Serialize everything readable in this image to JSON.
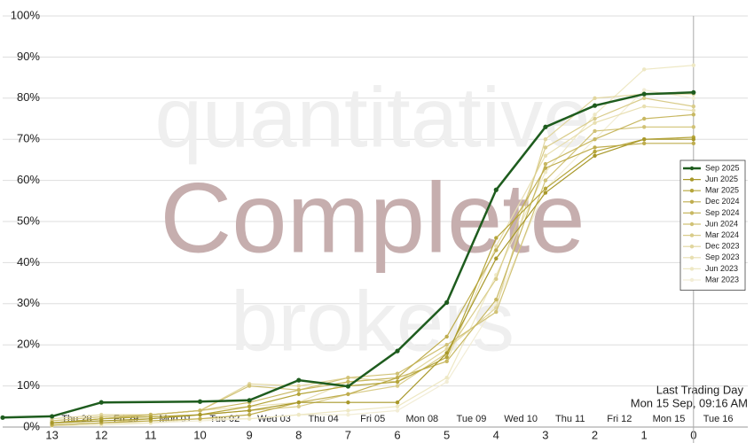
{
  "chart_data": {
    "type": "line",
    "watermark": [
      "quantitative",
      "Complete",
      "brokers"
    ],
    "annotations": [
      "Last Trading Day",
      "Mon 15 Sep, 09:16 AM"
    ],
    "xlim": [
      14,
      -1.1
    ],
    "xticks": [
      13,
      12,
      11,
      10,
      9,
      8,
      7,
      6,
      5,
      4,
      3,
      2,
      1,
      0
    ],
    "date_ticks": [
      {
        "value": 12.5,
        "label": "Thu 28"
      },
      {
        "value": 11.5,
        "label": "Fri 29"
      },
      {
        "value": 10.5,
        "label": "Mon 01"
      },
      {
        "value": 9.5,
        "label": "Tue 02"
      },
      {
        "value": 8.5,
        "label": "Wed 03"
      },
      {
        "value": 7.5,
        "label": "Thu 04"
      },
      {
        "value": 6.5,
        "label": "Fri 05"
      },
      {
        "value": 5.5,
        "label": "Mon 08"
      },
      {
        "value": 4.5,
        "label": "Tue 09"
      },
      {
        "value": 3.5,
        "label": "Wed 10"
      },
      {
        "value": 2.5,
        "label": "Thu 11"
      },
      {
        "value": 1.5,
        "label": "Fri 12"
      },
      {
        "value": 0.5,
        "label": "Mon 15"
      },
      {
        "value": -0.5,
        "label": "Tue 16"
      }
    ],
    "ylim": [
      0,
      100
    ],
    "yticks": [
      {
        "value": 0,
        "label": "0%"
      },
      {
        "value": 10,
        "label": "10%"
      },
      {
        "value": 20,
        "label": "20%"
      },
      {
        "value": 30,
        "label": "30%"
      },
      {
        "value": 40,
        "label": "40%"
      },
      {
        "value": 50,
        "label": "50%"
      },
      {
        "value": 60,
        "label": "60%"
      },
      {
        "value": 70,
        "label": "70%"
      },
      {
        "value": 80,
        "label": "80%"
      },
      {
        "value": 90,
        "label": "90%"
      },
      {
        "value": 100,
        "label": "100%"
      }
    ],
    "grid": true,
    "legend": "right",
    "marker_line_x": 0,
    "series": [
      {
        "name": "Sep 2025",
        "color": "#1e5c1e",
        "x": [
          14,
          13,
          12,
          10,
          9,
          8,
          7,
          6,
          5,
          4,
          3,
          2,
          1,
          0
        ],
        "values": [
          2.3,
          2.6,
          6.0,
          6.2,
          6.5,
          11.4,
          9.9,
          18.5,
          30.3,
          57.7,
          73.0,
          78.2,
          81.0,
          81.4
        ]
      },
      {
        "name": "Jun 2025",
        "color": "#a8982a",
        "x": [
          13,
          12,
          11,
          10,
          9,
          8,
          7,
          6,
          5,
          4,
          3,
          2,
          1,
          0
        ],
        "values": [
          1,
          1.5,
          2,
          3,
          4,
          6,
          6,
          6,
          18,
          41,
          57,
          66,
          70,
          70
        ]
      },
      {
        "name": "Mar 2025",
        "color": "#b5a53a",
        "x": [
          13,
          12,
          11,
          10,
          9,
          8,
          7,
          6,
          5,
          4,
          3,
          2,
          1,
          0
        ],
        "values": [
          1,
          2,
          2.5,
          3,
          5,
          8,
          10,
          11,
          17,
          46,
          58,
          67,
          70,
          70.5
        ]
      },
      {
        "name": "Dec 2024",
        "color": "#bfad4e",
        "x": [
          13,
          12,
          11,
          10,
          9,
          8,
          7,
          6,
          5,
          4,
          3,
          2,
          1,
          0
        ],
        "values": [
          0.5,
          1,
          1.5,
          2,
          3,
          6,
          8,
          12,
          22,
          43,
          63,
          68,
          69,
          69
        ]
      },
      {
        "name": "Sep 2024",
        "color": "#c8b862",
        "x": [
          13,
          12,
          11,
          10,
          9,
          8,
          7,
          6,
          5,
          4,
          3,
          2,
          1,
          0
        ],
        "values": [
          1,
          2,
          3,
          4,
          6,
          9,
          11,
          12,
          16,
          31,
          64,
          70,
          75,
          76
        ]
      },
      {
        "name": "Jun 2024",
        "color": "#d1c276",
        "x": [
          13,
          12,
          11,
          10,
          9,
          8,
          7,
          6,
          5,
          4,
          3,
          2,
          1,
          0
        ],
        "values": [
          1.5,
          2.5,
          3,
          4,
          10,
          9,
          12,
          13,
          20,
          28,
          60,
          72,
          73,
          73
        ]
      },
      {
        "name": "Mar 2024",
        "color": "#d9cc8a",
        "x": [
          13,
          12,
          11,
          10,
          9,
          8,
          7,
          6,
          5,
          4,
          3,
          2,
          1,
          0
        ],
        "values": [
          0.5,
          1,
          2,
          3,
          4,
          5,
          8,
          10,
          18,
          36,
          68,
          75,
          80,
          78
        ]
      },
      {
        "name": "Dec 2023",
        "color": "#e1d69e",
        "x": [
          13,
          12,
          11,
          10,
          9,
          8,
          7,
          6,
          5,
          4,
          3,
          2,
          1,
          0
        ],
        "values": [
          2,
          3,
          3,
          4,
          10.5,
          10,
          12,
          11,
          19,
          29,
          70,
          80,
          81,
          81
        ]
      },
      {
        "name": "Sep 2023",
        "color": "#e8dfb1",
        "x": [
          13,
          12,
          11,
          10,
          9,
          8,
          7,
          6,
          5,
          4,
          3,
          2,
          1,
          0
        ],
        "values": [
          1,
          2,
          3,
          4,
          5,
          6,
          11,
          12,
          16,
          44,
          66,
          74,
          78,
          77
        ]
      },
      {
        "name": "Jun 2023",
        "color": "#eee8c4",
        "x": [
          13,
          12,
          11,
          10,
          9,
          8,
          7,
          6,
          5,
          4,
          3,
          2,
          1,
          0
        ],
        "values": [
          0.3,
          0.5,
          1,
          2,
          2,
          3,
          4,
          5,
          12,
          37,
          62,
          76,
          87,
          88
        ]
      },
      {
        "name": "Mar 2023",
        "color": "#f2edd6",
        "x": [
          13,
          12,
          11,
          10,
          9,
          8,
          7,
          6,
          5,
          4,
          3,
          2,
          1,
          0
        ],
        "values": [
          0.5,
          1,
          1,
          1.5,
          2,
          3,
          3,
          4,
          11,
          30,
          58,
          70,
          82,
          80
        ]
      }
    ]
  }
}
